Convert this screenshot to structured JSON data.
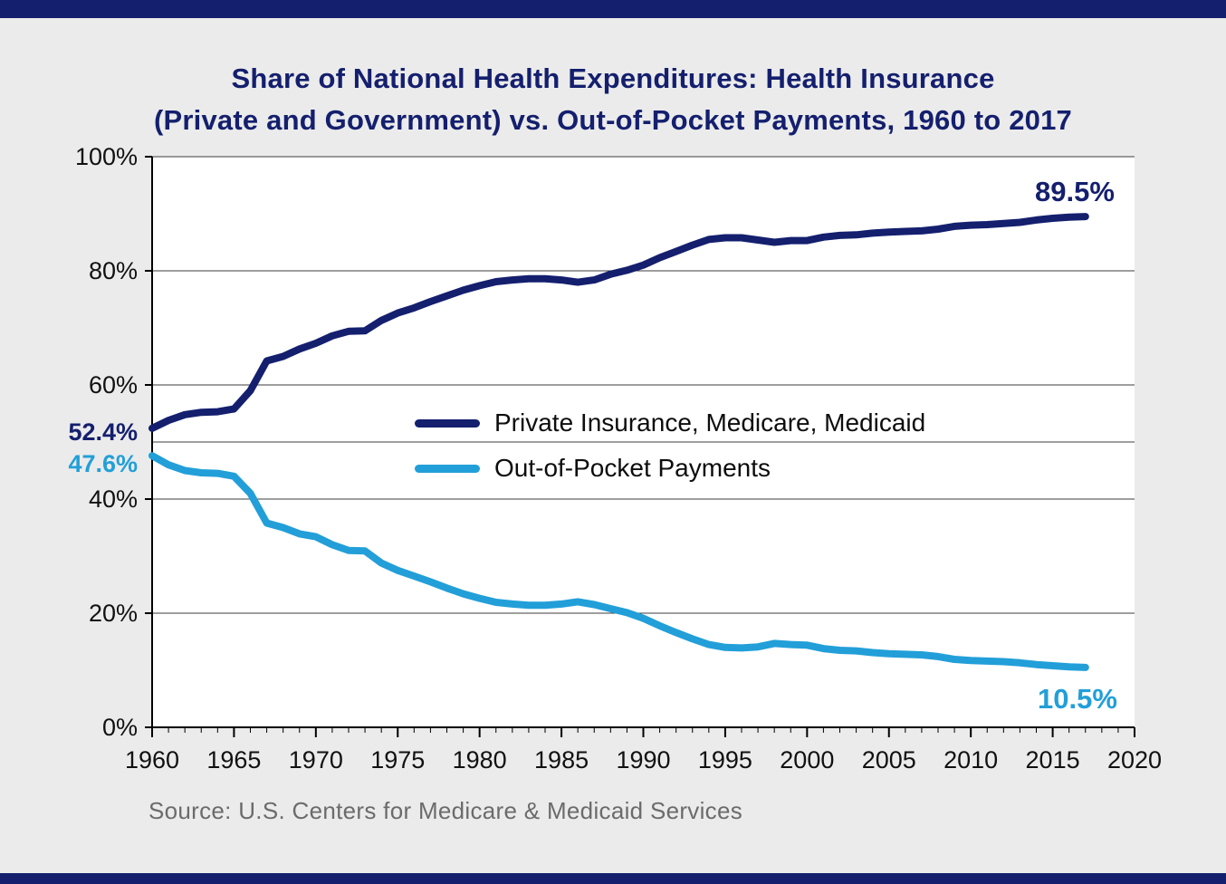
{
  "page": {
    "background": "#ebebeb",
    "bar_color": "#141f6e"
  },
  "title": {
    "line1": "Share of National Health Expenditures: Health Insurance",
    "line2": "(Private and Government) vs. Out-of-Pocket Payments, 1960 to 2017"
  },
  "annotations": {
    "start_private": "52.4%",
    "start_oop": "47.6%",
    "end_private": "89.5%",
    "end_oop": "10.5%"
  },
  "legend": [
    {
      "label": "Private Insurance, Medicare, Medicaid",
      "color": "#141f6e"
    },
    {
      "label": "Out-of-Pocket Payments",
      "color": "#229fd8"
    }
  ],
  "source": "Source: U.S. Centers for Medicare & Medicaid Services",
  "chart_data": {
    "type": "line",
    "title": "Share of National Health Expenditures: Health Insurance (Private and Government) vs. Out-of-Pocket Payments, 1960 to 2017",
    "xlabel": "",
    "ylabel": "",
    "x_range": [
      1960,
      2020
    ],
    "y_range": [
      0,
      100
    ],
    "gridlines_y": [
      20,
      40,
      50,
      60,
      80,
      100
    ],
    "grid_on": true,
    "legend_position": "center",
    "y_ticks": [
      {
        "value": 0,
        "label": "0%"
      },
      {
        "value": 20,
        "label": "20%"
      },
      {
        "value": 40,
        "label": "40%"
      },
      {
        "value": 60,
        "label": "60%"
      },
      {
        "value": 80,
        "label": "80%"
      },
      {
        "value": 100,
        "label": "100%"
      }
    ],
    "x_ticks": [
      {
        "value": 1960,
        "label": "1960"
      },
      {
        "value": 1965,
        "label": "1965"
      },
      {
        "value": 1970,
        "label": "1970"
      },
      {
        "value": 1975,
        "label": "1975"
      },
      {
        "value": 1980,
        "label": "1980"
      },
      {
        "value": 1985,
        "label": "1985"
      },
      {
        "value": 1990,
        "label": "1990"
      },
      {
        "value": 1995,
        "label": "1995"
      },
      {
        "value": 2000,
        "label": "2000"
      },
      {
        "value": 2005,
        "label": "2005"
      },
      {
        "value": 2010,
        "label": "2010"
      },
      {
        "value": 2015,
        "label": "2015"
      },
      {
        "value": 2020,
        "label": "2020"
      }
    ],
    "years": [
      1960,
      1961,
      1962,
      1963,
      1964,
      1965,
      1966,
      1967,
      1968,
      1969,
      1970,
      1971,
      1972,
      1973,
      1974,
      1975,
      1976,
      1977,
      1978,
      1979,
      1980,
      1981,
      1982,
      1983,
      1984,
      1985,
      1986,
      1987,
      1988,
      1989,
      1990,
      1991,
      1992,
      1993,
      1994,
      1995,
      1996,
      1997,
      1998,
      1999,
      2000,
      2001,
      2002,
      2003,
      2004,
      2005,
      2006,
      2007,
      2008,
      2009,
      2010,
      2011,
      2012,
      2013,
      2014,
      2015,
      2016,
      2017
    ],
    "series": [
      {
        "name": "Private Insurance, Medicare, Medicaid",
        "color": "#141f6e",
        "stroke_width": 8,
        "values": [
          52.4,
          53.8,
          54.8,
          55.2,
          55.3,
          55.8,
          59.0,
          64.2,
          65.0,
          66.3,
          67.3,
          68.6,
          69.4,
          69.5,
          71.3,
          72.6,
          73.5,
          74.6,
          75.6,
          76.6,
          77.4,
          78.1,
          78.4,
          78.6,
          78.6,
          78.4,
          78.0,
          78.4,
          79.4,
          80.1,
          81.0,
          82.3,
          83.4,
          84.5,
          85.5,
          85.8,
          85.8,
          85.4,
          85.0,
          85.3,
          85.3,
          85.9,
          86.2,
          86.3,
          86.6,
          86.8,
          86.9,
          87.0,
          87.3,
          87.8,
          88.0,
          88.1,
          88.3,
          88.5,
          88.9,
          89.2,
          89.4,
          89.5
        ]
      },
      {
        "name": "Out-of-Pocket Payments",
        "color": "#229fd8",
        "stroke_width": 8,
        "values": [
          47.6,
          46.0,
          45.0,
          44.6,
          44.5,
          44.0,
          41.0,
          35.8,
          35.0,
          33.9,
          33.4,
          32.0,
          31.0,
          30.9,
          28.8,
          27.5,
          26.5,
          25.5,
          24.4,
          23.4,
          22.6,
          21.9,
          21.6,
          21.4,
          21.4,
          21.6,
          22.0,
          21.5,
          20.8,
          20.1,
          19.1,
          17.8,
          16.6,
          15.5,
          14.5,
          14.0,
          13.9,
          14.1,
          14.7,
          14.5,
          14.4,
          13.8,
          13.5,
          13.4,
          13.1,
          12.9,
          12.8,
          12.7,
          12.4,
          11.9,
          11.7,
          11.6,
          11.5,
          11.3,
          11.0,
          10.8,
          10.6,
          10.5
        ]
      }
    ]
  }
}
